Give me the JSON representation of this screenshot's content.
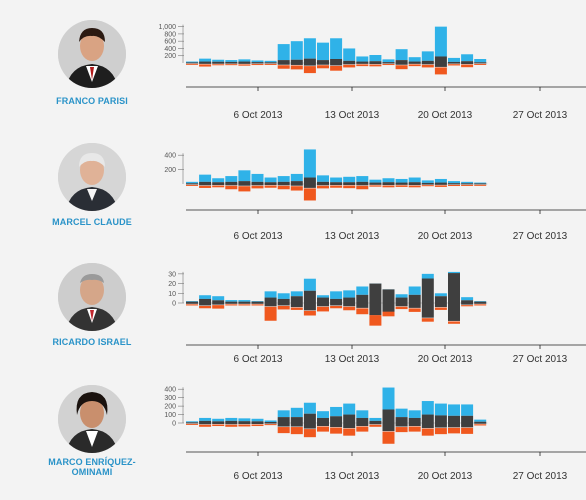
{
  "colors": {
    "positive": "#2fb2e8",
    "neutral": "#3f3f3f",
    "negative": "#f0581e",
    "name": "#2a93c8"
  },
  "chart_data": [
    {
      "type": "bar",
      "candidate": "FRANCO PARISI",
      "avatar": "franco-parisi-photo",
      "x_ticks": [
        "6 Oct 2013",
        "13 Oct 2013",
        "20 Oct 2013",
        "27 Oct 2013"
      ],
      "y_ticks": [
        "200",
        "400",
        "600",
        "800",
        "1,000"
      ],
      "ylim": [
        0,
        1100
      ],
      "series": [
        {
          "name": "positive",
          "values": [
            40,
            120,
            90,
            80,
            100,
            70,
            60,
            520,
            600,
            680,
            560,
            680,
            400,
            180,
            220,
            100,
            380,
            160,
            320,
            1000,
            140,
            240,
            110
          ]
        },
        {
          "name": "neutral",
          "values": [
            15,
            40,
            35,
            30,
            40,
            25,
            20,
            80,
            90,
            120,
            80,
            110,
            60,
            40,
            50,
            25,
            80,
            40,
            60,
            180,
            30,
            50,
            20
          ]
        },
        {
          "name": "negative",
          "values": [
            10,
            50,
            20,
            20,
            30,
            15,
            10,
            80,
            90,
            160,
            70,
            110,
            60,
            40,
            40,
            20,
            90,
            40,
            60,
            160,
            30,
            60,
            20
          ]
        }
      ]
    },
    {
      "type": "bar",
      "candidate": "MARCEL CLAUDE",
      "avatar": "marcel-claude-photo",
      "x_ticks": [
        "6 Oct 2013",
        "13 Oct 2013",
        "20 Oct 2013",
        "27 Oct 2013"
      ],
      "y_ticks": [
        "200",
        "400"
      ],
      "ylim": [
        0,
        500
      ],
      "series": [
        {
          "name": "positive",
          "values": [
            30,
            130,
            80,
            110,
            190,
            140,
            90,
            110,
            140,
            480,
            120,
            90,
            100,
            110,
            60,
            80,
            70,
            90,
            50,
            70,
            40,
            30,
            20
          ]
        },
        {
          "name": "neutral",
          "values": [
            10,
            30,
            25,
            30,
            40,
            30,
            25,
            30,
            40,
            90,
            30,
            25,
            25,
            30,
            20,
            25,
            20,
            25,
            15,
            20,
            12,
            10,
            8
          ]
        },
        {
          "name": "negative",
          "values": [
            8,
            25,
            20,
            40,
            60,
            30,
            25,
            40,
            50,
            140,
            30,
            25,
            30,
            40,
            15,
            20,
            18,
            20,
            12,
            18,
            10,
            8,
            6
          ]
        }
      ]
    },
    {
      "type": "bar",
      "candidate": "RICARDO ISRAEL",
      "avatar": "ricardo-israel-photo",
      "x_ticks": [
        "6 Oct 2013",
        "13 Oct 2013",
        "20 Oct 2013",
        "27 Oct 2013"
      ],
      "y_ticks": [
        "0",
        "10",
        "20",
        "30"
      ],
      "ylim": [
        0,
        35
      ],
      "series": [
        {
          "name": "positive",
          "values": [
            2,
            8,
            7,
            3,
            3,
            2,
            12,
            10,
            12,
            25,
            8,
            12,
            13,
            17,
            20,
            14,
            9,
            17,
            30,
            10,
            32,
            6,
            2
          ]
        },
        {
          "name": "neutral",
          "values": [
            1,
            3,
            2,
            1,
            1,
            1,
            4,
            3,
            5,
            9,
            4,
            3,
            4,
            6,
            15,
            12,
            4,
            6,
            18,
            5,
            22,
            2,
            1
          ]
        },
        {
          "name": "negative",
          "values": [
            1,
            2,
            3,
            1,
            1,
            1,
            12,
            3,
            2,
            4,
            4,
            2,
            3,
            5,
            9,
            4,
            2,
            3,
            3,
            2,
            2,
            1,
            1
          ]
        }
      ]
    },
    {
      "type": "bar",
      "candidate": "MARCO ENRÍQUEZ-OMINAMI",
      "avatar": "marco-enriquez-ominami-photo",
      "x_ticks": [
        "6 Oct 2013",
        "13 Oct 2013",
        "20 Oct 2013",
        "27 Oct 2013"
      ],
      "y_ticks": [
        "0",
        "100",
        "200",
        "300",
        "400"
      ],
      "ylim": [
        0,
        450
      ],
      "series": [
        {
          "name": "positive",
          "values": [
            20,
            60,
            50,
            60,
            55,
            50,
            30,
            150,
            180,
            240,
            140,
            190,
            230,
            150,
            60,
            420,
            170,
            150,
            260,
            230,
            220,
            220,
            40
          ]
        },
        {
          "name": "neutral",
          "values": [
            8,
            25,
            20,
            25,
            22,
            20,
            12,
            70,
            70,
            110,
            60,
            80,
            100,
            60,
            25,
            160,
            70,
            60,
            100,
            90,
            85,
            85,
            15
          ]
        },
        {
          "name": "negative",
          "values": [
            6,
            20,
            15,
            20,
            18,
            15,
            10,
            60,
            70,
            80,
            50,
            60,
            70,
            50,
            20,
            120,
            50,
            50,
            70,
            60,
            55,
            60,
            12
          ]
        }
      ]
    }
  ]
}
